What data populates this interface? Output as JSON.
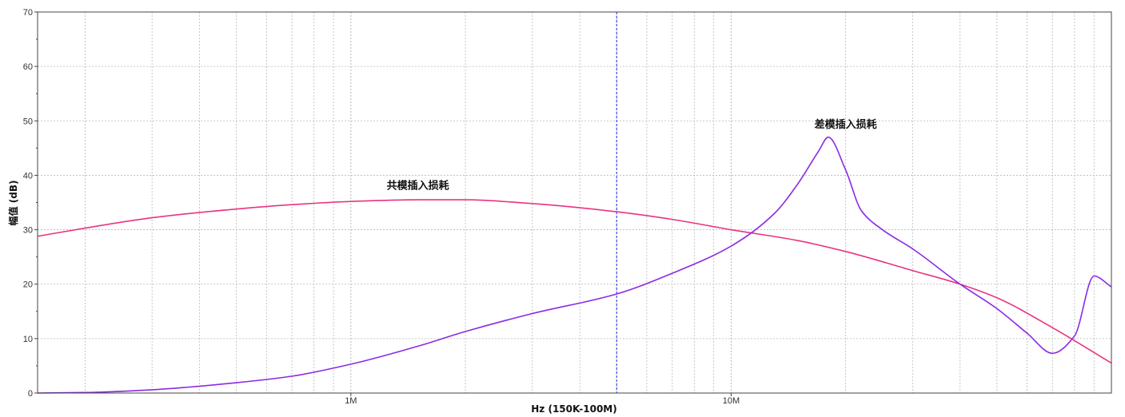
{
  "chart_data": {
    "type": "line",
    "xscale": "log",
    "xlim": [
      150000,
      100000000
    ],
    "ylim": [
      0,
      70
    ],
    "xlabel": "Hz  (150K-100M)",
    "ylabel": "幅值 (dB)",
    "x_ticks": [
      {
        "value": 1000000,
        "label": "1M"
      },
      {
        "value": 10000000,
        "label": "10M"
      }
    ],
    "y_ticks": [
      0,
      10,
      20,
      30,
      40,
      50,
      60,
      70
    ],
    "grid": true,
    "marker_line": {
      "x": 5000000,
      "color": "#3b4cf0"
    },
    "colors": {
      "common_mode": "#e8347f",
      "differential_mode": "#8a2be2",
      "grid": "#b8b8b8",
      "frame": "#444444"
    },
    "series": [
      {
        "name": "共模插入损耗",
        "color": "#e8347f",
        "x": [
          150000,
          200000,
          300000,
          500000,
          700000,
          1000000,
          1500000,
          2000000,
          3000000,
          5000000,
          7000000,
          10000000,
          15000000,
          20000000,
          30000000,
          40000000,
          50000000,
          70000000,
          100000000
        ],
        "y": [
          28.8,
          30.3,
          32.2,
          33.8,
          34.6,
          35.2,
          35.5,
          35.5,
          34.8,
          33.3,
          31.9,
          30.0,
          28.0,
          26.0,
          22.5,
          20.0,
          17.5,
          12.0,
          5.5
        ]
      },
      {
        "name": "差模插入损耗",
        "color": "#8a2be2",
        "x": [
          150000,
          200000,
          300000,
          500000,
          700000,
          1000000,
          1500000,
          2000000,
          3000000,
          5000000,
          7000000,
          10000000,
          13000000,
          15000000,
          17000000,
          18000000,
          20000000,
          22000000,
          25000000,
          30000000,
          40000000,
          50000000,
          60000000,
          70000000,
          80000000,
          90000000,
          100000000
        ],
        "y": [
          0,
          0.1,
          0.6,
          1.9,
          3.1,
          5.3,
          8.6,
          11.3,
          14.6,
          18.2,
          22.0,
          27.0,
          33.0,
          38.5,
          44.5,
          47.0,
          41.0,
          33.5,
          30.0,
          26.5,
          20.0,
          15.5,
          11.0,
          7.3,
          10.5,
          21.5,
          19.5
        ]
      }
    ],
    "annotations": [
      {
        "text": "共模插入损耗",
        "x": 1500000,
        "y": 37.5
      },
      {
        "text": "差模插入损耗",
        "x": 20000000,
        "y": 48.7
      }
    ]
  }
}
